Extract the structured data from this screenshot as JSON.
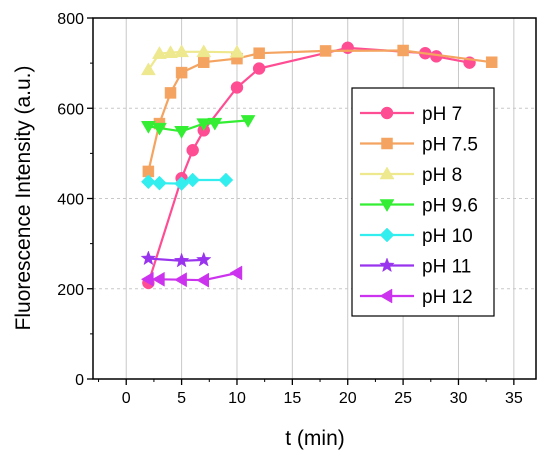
{
  "chart_data": {
    "type": "line",
    "xlabel": "t (min)",
    "ylabel": "Fluorescence Intensity (a.u.)",
    "xlim": [
      -3,
      37
    ],
    "ylim": [
      0,
      800
    ],
    "x_ticks": [
      0,
      5,
      10,
      15,
      20,
      25,
      30,
      35
    ],
    "y_ticks": [
      0,
      200,
      400,
      600,
      800
    ],
    "grid": true,
    "legend_position": "right",
    "series": [
      {
        "name": "pH 7",
        "color": "#ff4d94",
        "marker": "circle",
        "x": [
          2,
          5,
          6,
          7,
          10,
          12,
          20,
          27,
          28,
          31
        ],
        "y": [
          213,
          445,
          507,
          551,
          646,
          688,
          734,
          722,
          715,
          701
        ]
      },
      {
        "name": "pH 7.5",
        "color": "#f4a460",
        "marker": "square",
        "x": [
          2,
          3,
          4,
          5,
          7,
          10,
          12,
          18,
          25,
          33
        ],
        "y": [
          460,
          566,
          634,
          679,
          702,
          710,
          722,
          727,
          728,
          702
        ]
      },
      {
        "name": "pH 8",
        "color": "#eee88e",
        "marker": "triangle-up",
        "x": [
          2,
          3,
          4,
          5,
          7,
          10
        ],
        "y": [
          685,
          721,
          723,
          725,
          725,
          724
        ]
      },
      {
        "name": "pH 9.6",
        "color": "#33ee33",
        "marker": "triangle-down",
        "x": [
          2,
          3,
          5,
          7,
          8,
          11
        ],
        "y": [
          560,
          556,
          549,
          566,
          567,
          573
        ]
      },
      {
        "name": "pH 10",
        "color": "#33eeee",
        "marker": "diamond",
        "x": [
          2,
          3,
          5,
          6,
          9
        ],
        "y": [
          437,
          434,
          433,
          441,
          441
        ]
      },
      {
        "name": "pH 11",
        "color": "#9933ee",
        "marker": "star",
        "x": [
          2,
          5,
          7
        ],
        "y": [
          267,
          262,
          264
        ]
      },
      {
        "name": "pH 12",
        "color": "#cc33ee",
        "marker": "triangle-left",
        "x": [
          2,
          3,
          5,
          7,
          10
        ],
        "y": [
          221,
          221,
          220,
          219,
          235
        ]
      }
    ]
  }
}
